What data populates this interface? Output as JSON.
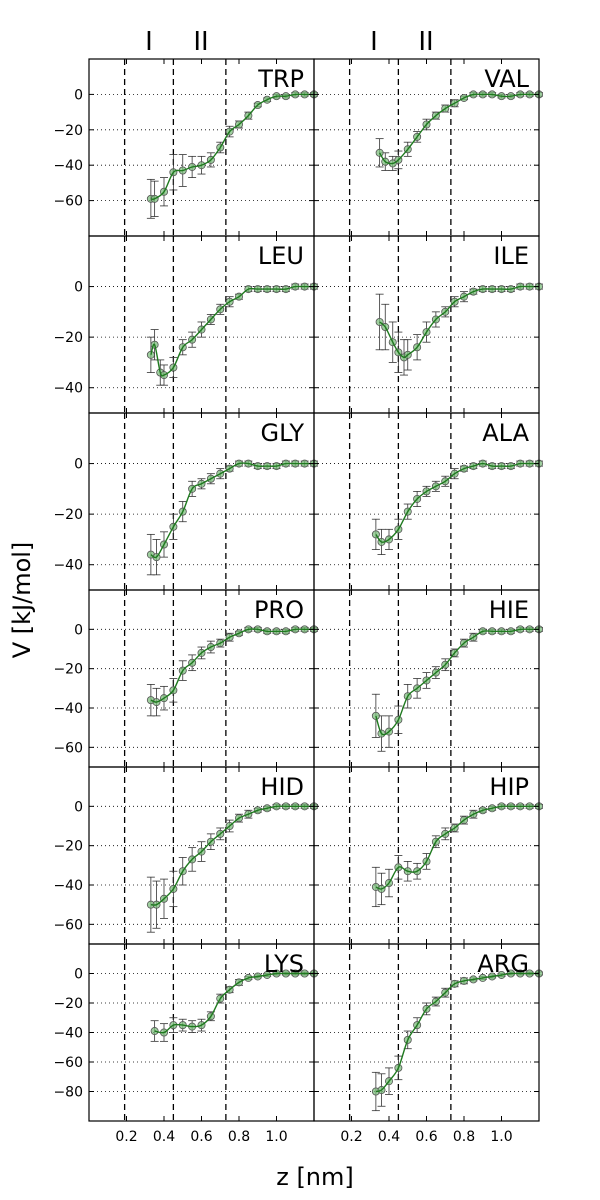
{
  "chart_data": {
    "type": "line",
    "xlabel": "z [nm]",
    "ylabel": "V [kJ/mol]",
    "xlim": [
      0.0,
      1.2
    ],
    "x_ticks": [
      0.2,
      0.4,
      0.6,
      0.8,
      1.0
    ],
    "x_tick_labels": [
      "0.2",
      "0.4",
      "0.6",
      "0.8",
      "1.0"
    ],
    "region_labels": [
      "I",
      "II"
    ],
    "dashed_lines_x": [
      0.19,
      0.45,
      0.73
    ],
    "grid": "horizontal dotted",
    "colors": {
      "line": "#1f7a1f",
      "marker_fill": "#7fbf7f",
      "marker_edge": "#555555",
      "errorbar": "#333333"
    },
    "panels": [
      {
        "name": "TRP",
        "ylim": [
          -80,
          20
        ],
        "yticks": [
          0,
          -20,
          -40,
          -60
        ],
        "yticklabels": [
          "0",
          "−20",
          "−40",
          "−60"
        ],
        "x": [
          0.33,
          0.35,
          0.4,
          0.45,
          0.5,
          0.55,
          0.6,
          0.65,
          0.7,
          0.75,
          0.8,
          0.85,
          0.9,
          0.95,
          1.0,
          1.05,
          1.1,
          1.15,
          1.2
        ],
        "y": [
          -59,
          -59,
          -55,
          -44,
          -43,
          -41,
          -40,
          -37,
          -30,
          -21,
          -17,
          -12,
          -6,
          -3,
          -1,
          -1,
          0,
          0,
          0
        ],
        "err": [
          11,
          10,
          8,
          10,
          9,
          6,
          5,
          4,
          3,
          3,
          2,
          2,
          1,
          1,
          1,
          1,
          1,
          1,
          1
        ]
      },
      {
        "name": "VAL",
        "ylim": [
          -80,
          20
        ],
        "yticks": [
          0,
          -20,
          -40,
          -60
        ],
        "yticklabels": [
          "0",
          "−20",
          "−40",
          "−60"
        ],
        "x": [
          0.35,
          0.38,
          0.42,
          0.45,
          0.5,
          0.55,
          0.6,
          0.65,
          0.7,
          0.75,
          0.8,
          0.85,
          0.9,
          0.95,
          1.0,
          1.05,
          1.1,
          1.15,
          1.2
        ],
        "y": [
          -33,
          -38,
          -39,
          -37,
          -31,
          -24,
          -17,
          -12,
          -8,
          -5,
          -2,
          0,
          0,
          0,
          -1,
          -1,
          0,
          0,
          0
        ],
        "err": [
          8,
          5,
          4,
          5,
          4,
          3,
          3,
          2,
          2,
          2,
          1,
          1,
          1,
          1,
          1,
          1,
          1,
          1,
          1
        ]
      },
      {
        "name": "LEU",
        "ylim": [
          -50,
          20
        ],
        "yticks": [
          0,
          -20,
          -40
        ],
        "yticklabels": [
          "0",
          "−20",
          "−40"
        ],
        "x": [
          0.33,
          0.35,
          0.38,
          0.4,
          0.45,
          0.5,
          0.55,
          0.6,
          0.65,
          0.7,
          0.75,
          0.8,
          0.85,
          0.9,
          0.95,
          1.0,
          1.05,
          1.1,
          1.15,
          1.2
        ],
        "y": [
          -27,
          -23,
          -34,
          -35,
          -32,
          -24,
          -21,
          -17,
          -13,
          -9,
          -6,
          -4,
          -1,
          -1,
          -1,
          -1,
          -1,
          0,
          0,
          0
        ],
        "err": [
          7,
          6,
          5,
          4,
          4,
          3,
          3,
          3,
          2,
          2,
          2,
          1,
          1,
          1,
          1,
          1,
          1,
          1,
          1,
          1
        ]
      },
      {
        "name": "ILE",
        "ylim": [
          -50,
          20
        ],
        "yticks": [
          0,
          -20,
          -40
        ],
        "yticklabels": [
          "0",
          "−20",
          "−40"
        ],
        "x": [
          0.35,
          0.38,
          0.42,
          0.45,
          0.48,
          0.5,
          0.55,
          0.6,
          0.65,
          0.7,
          0.75,
          0.8,
          0.85,
          0.9,
          0.95,
          1.0,
          1.05,
          1.1,
          1.15,
          1.2
        ],
        "y": [
          -14,
          -16,
          -22,
          -26,
          -28,
          -27,
          -24,
          -18,
          -13,
          -10,
          -6,
          -4,
          -2,
          -1,
          -1,
          -1,
          -1,
          0,
          0,
          0
        ],
        "err": [
          11,
          9,
          8,
          8,
          7,
          6,
          5,
          4,
          3,
          2,
          2,
          2,
          1,
          1,
          1,
          1,
          1,
          1,
          1,
          1
        ]
      },
      {
        "name": "GLY",
        "ylim": [
          -50,
          20
        ],
        "yticks": [
          0,
          -20,
          -40
        ],
        "yticklabels": [
          "0",
          "−20",
          "−40"
        ],
        "x": [
          0.33,
          0.36,
          0.4,
          0.45,
          0.5,
          0.55,
          0.6,
          0.65,
          0.7,
          0.75,
          0.8,
          0.85,
          0.9,
          0.95,
          1.0,
          1.05,
          1.1,
          1.15,
          1.2
        ],
        "y": [
          -36,
          -37,
          -32,
          -25,
          -19,
          -10,
          -8,
          -6,
          -4,
          -2,
          0,
          0,
          -1,
          -1,
          -1,
          0,
          0,
          0,
          0
        ],
        "err": [
          8,
          7,
          5,
          5,
          4,
          3,
          2,
          2,
          2,
          1,
          1,
          1,
          1,
          1,
          1,
          1,
          1,
          1,
          1
        ]
      },
      {
        "name": "ALA",
        "ylim": [
          -50,
          20
        ],
        "yticks": [
          0,
          -20,
          -40
        ],
        "yticklabels": [
          "0",
          "−20",
          "−40"
        ],
        "x": [
          0.33,
          0.36,
          0.4,
          0.45,
          0.5,
          0.55,
          0.6,
          0.65,
          0.7,
          0.75,
          0.8,
          0.85,
          0.9,
          0.95,
          1.0,
          1.05,
          1.1,
          1.15,
          1.2
        ],
        "y": [
          -28,
          -31,
          -30,
          -26,
          -19,
          -14,
          -11,
          -9,
          -7,
          -4,
          -2,
          -1,
          0,
          -1,
          -1,
          -1,
          0,
          0,
          0
        ],
        "err": [
          6,
          5,
          4,
          4,
          3,
          3,
          2,
          2,
          2,
          2,
          1,
          1,
          1,
          1,
          1,
          1,
          1,
          1,
          1
        ]
      },
      {
        "name": "PRO",
        "ylim": [
          -70,
          20
        ],
        "yticks": [
          0,
          -20,
          -40,
          -60
        ],
        "yticklabels": [
          "0",
          "−20",
          "−40",
          "−60"
        ],
        "x": [
          0.33,
          0.36,
          0.4,
          0.45,
          0.5,
          0.55,
          0.6,
          0.65,
          0.7,
          0.75,
          0.8,
          0.85,
          0.9,
          0.95,
          1.0,
          1.05,
          1.1,
          1.15,
          1.2
        ],
        "y": [
          -36,
          -37,
          -35,
          -31,
          -21,
          -17,
          -12,
          -9,
          -7,
          -4,
          -2,
          0,
          0,
          -1,
          -1,
          -1,
          0,
          0,
          0
        ],
        "err": [
          8,
          7,
          6,
          6,
          5,
          4,
          3,
          3,
          2,
          2,
          1,
          1,
          1,
          1,
          1,
          1,
          1,
          1,
          1
        ]
      },
      {
        "name": "HIE",
        "ylim": [
          -70,
          20
        ],
        "yticks": [
          0,
          -20,
          -40,
          -60
        ],
        "yticklabels": [
          "0",
          "−20",
          "−40",
          "−60"
        ],
        "x": [
          0.33,
          0.36,
          0.4,
          0.45,
          0.5,
          0.55,
          0.6,
          0.65,
          0.7,
          0.75,
          0.8,
          0.85,
          0.9,
          0.95,
          1.0,
          1.05,
          1.1,
          1.15,
          1.2
        ],
        "y": [
          -44,
          -53,
          -52,
          -46,
          -34,
          -30,
          -26,
          -22,
          -18,
          -12,
          -7,
          -4,
          -1,
          -1,
          -1,
          -1,
          0,
          0,
          0
        ],
        "err": [
          11,
          9,
          8,
          7,
          6,
          5,
          4,
          3,
          3,
          2,
          2,
          2,
          1,
          1,
          1,
          1,
          1,
          1,
          1
        ]
      },
      {
        "name": "HID",
        "ylim": [
          -70,
          20
        ],
        "yticks": [
          0,
          -20,
          -40,
          -60
        ],
        "yticklabels": [
          "0",
          "−20",
          "−40",
          "−60"
        ],
        "x": [
          0.33,
          0.36,
          0.4,
          0.45,
          0.5,
          0.55,
          0.6,
          0.65,
          0.7,
          0.75,
          0.8,
          0.85,
          0.9,
          0.95,
          1.0,
          1.05,
          1.1,
          1.15,
          1.2
        ],
        "y": [
          -50,
          -50,
          -47,
          -42,
          -33,
          -27,
          -23,
          -18,
          -14,
          -10,
          -6,
          -4,
          -2,
          -1,
          0,
          0,
          0,
          0,
          0
        ],
        "err": [
          14,
          12,
          10,
          9,
          7,
          6,
          5,
          4,
          3,
          3,
          2,
          2,
          1,
          1,
          1,
          1,
          1,
          1,
          1
        ]
      },
      {
        "name": "HIP",
        "ylim": [
          -70,
          20
        ],
        "yticks": [
          0,
          -20,
          -40,
          -60
        ],
        "yticklabels": [
          "0",
          "−20",
          "−40",
          "−60"
        ],
        "x": [
          0.33,
          0.36,
          0.4,
          0.45,
          0.5,
          0.55,
          0.6,
          0.65,
          0.7,
          0.75,
          0.8,
          0.85,
          0.9,
          0.95,
          1.0,
          1.05,
          1.1,
          1.15,
          1.2
        ],
        "y": [
          -41,
          -42,
          -39,
          -31,
          -33,
          -33,
          -28,
          -18,
          -14,
          -11,
          -7,
          -4,
          -2,
          -1,
          0,
          0,
          0,
          0,
          0
        ],
        "err": [
          10,
          8,
          7,
          6,
          5,
          4,
          4,
          3,
          3,
          2,
          2,
          2,
          1,
          1,
          1,
          1,
          1,
          1,
          1
        ]
      },
      {
        "name": "LYS",
        "ylim": [
          -100,
          20
        ],
        "yticks": [
          0,
          -20,
          -40,
          -60,
          -80
        ],
        "yticklabels": [
          "0",
          "−20",
          "−40",
          "−60",
          "−80"
        ],
        "x": [
          0.35,
          0.4,
          0.45,
          0.5,
          0.55,
          0.6,
          0.65,
          0.7,
          0.75,
          0.8,
          0.85,
          0.9,
          0.95,
          1.0,
          1.05,
          1.1,
          1.15,
          1.2
        ],
        "y": [
          -39,
          -40,
          -35,
          -35,
          -36,
          -35,
          -29,
          -17,
          -11,
          -6,
          -3,
          -2,
          -1,
          0,
          0,
          0,
          0,
          0
        ],
        "err": [
          7,
          6,
          5,
          4,
          4,
          4,
          3,
          3,
          2,
          2,
          1,
          1,
          1,
          1,
          1,
          1,
          1,
          1
        ]
      },
      {
        "name": "ARG",
        "ylim": [
          -100,
          20
        ],
        "yticks": [
          0,
          -20,
          -40,
          -60,
          -80
        ],
        "yticklabels": [
          "0",
          "−20",
          "−40",
          "−60",
          "−80"
        ],
        "x": [
          0.33,
          0.36,
          0.4,
          0.45,
          0.5,
          0.55,
          0.6,
          0.65,
          0.7,
          0.75,
          0.8,
          0.85,
          0.9,
          0.95,
          1.0,
          1.05,
          1.1,
          1.15,
          1.2
        ],
        "y": [
          -80,
          -79,
          -73,
          -64,
          -45,
          -35,
          -24,
          -19,
          -13,
          -7,
          -5,
          -4,
          -3,
          -2,
          -1,
          0,
          0,
          0,
          0
        ],
        "err": [
          13,
          11,
          9,
          8,
          6,
          5,
          4,
          3,
          3,
          2,
          2,
          1,
          1,
          1,
          1,
          1,
          1,
          1,
          1
        ]
      }
    ]
  }
}
